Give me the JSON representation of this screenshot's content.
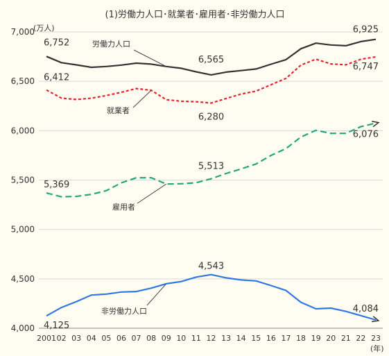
{
  "chart_data": {
    "type": "line",
    "title": "(1)労働力人口･就業者･雇用者･非労働力人口",
    "y_unit": "(万人)",
    "x_unit": "(年)",
    "ylim": [
      4000,
      7000
    ],
    "yticks": [
      "4,000",
      "4,500",
      "5,000",
      "5,500",
      "6,000",
      "6,500",
      "7,000"
    ],
    "ytick_values": [
      4000,
      4500,
      5000,
      5500,
      6000,
      6500,
      7000
    ],
    "x_labels": [
      "2001",
      "02",
      "03",
      "04",
      "05",
      "06",
      "07",
      "08",
      "09",
      "10",
      "11",
      "12",
      "13",
      "14",
      "15",
      "16",
      "17",
      "18",
      "19",
      "20",
      "21",
      "22",
      "23"
    ],
    "grid": "horizontal",
    "colors": {
      "labor": "#333333",
      "employed": "#e8212b",
      "employees": "#23a776",
      "notlabor": "#2f78e0",
      "background": "#fffdf2"
    },
    "series": [
      {
        "key": "labor",
        "name": "労働力人口",
        "style": "solid",
        "values": [
          6752,
          6689,
          6666,
          6642,
          6650,
          6664,
          6684,
          6674,
          6650,
          6632,
          6596,
          6565,
          6593,
          6609,
          6625,
          6673,
          6720,
          6830,
          6886,
          6868,
          6860,
          6902,
          6925
        ]
      },
      {
        "key": "employed",
        "name": "就業者",
        "style": "dotted",
        "values": [
          6412,
          6330,
          6316,
          6329,
          6356,
          6389,
          6427,
          6409,
          6314,
          6298,
          6293,
          6280,
          6326,
          6371,
          6401,
          6465,
          6530,
          6664,
          6724,
          6676,
          6667,
          6723,
          6747
        ]
      },
      {
        "key": "employees",
        "name": "雇用者",
        "style": "dashed",
        "values": [
          5369,
          5331,
          5335,
          5355,
          5393,
          5472,
          5523,
          5524,
          5460,
          5463,
          5473,
          5513,
          5567,
          5613,
          5663,
          5750,
          5819,
          5936,
          6004,
          5973,
          5973,
          6041,
          6076
        ]
      },
      {
        "key": "notlabor",
        "name": "非労働力人口",
        "style": "solid",
        "values": [
          4125,
          4210,
          4270,
          4336,
          4346,
          4367,
          4372,
          4406,
          4450,
          4473,
          4518,
          4543,
          4510,
          4489,
          4479,
          4432,
          4382,
          4263,
          4197,
          4204,
          4171,
          4128,
          4084
        ]
      }
    ],
    "data_labels": [
      {
        "series": "labor",
        "index": 0,
        "text": "6,752"
      },
      {
        "series": "labor",
        "index": 11,
        "text": "6,565"
      },
      {
        "series": "labor",
        "index": 22,
        "text": "6,925"
      },
      {
        "series": "employed",
        "index": 0,
        "text": "6,412"
      },
      {
        "series": "employed",
        "index": 11,
        "text": "6,280"
      },
      {
        "series": "employed",
        "index": 22,
        "text": "6,747"
      },
      {
        "series": "employees",
        "index": 0,
        "text": "5,369"
      },
      {
        "series": "employees",
        "index": 11,
        "text": "5,513"
      },
      {
        "series": "employees",
        "index": 22,
        "text": "6,076"
      },
      {
        "series": "notlabor",
        "index": 0,
        "text": "4,125"
      },
      {
        "series": "notlabor",
        "index": 11,
        "text": "4,543"
      },
      {
        "series": "notlabor",
        "index": 22,
        "text": "4,084"
      }
    ]
  }
}
